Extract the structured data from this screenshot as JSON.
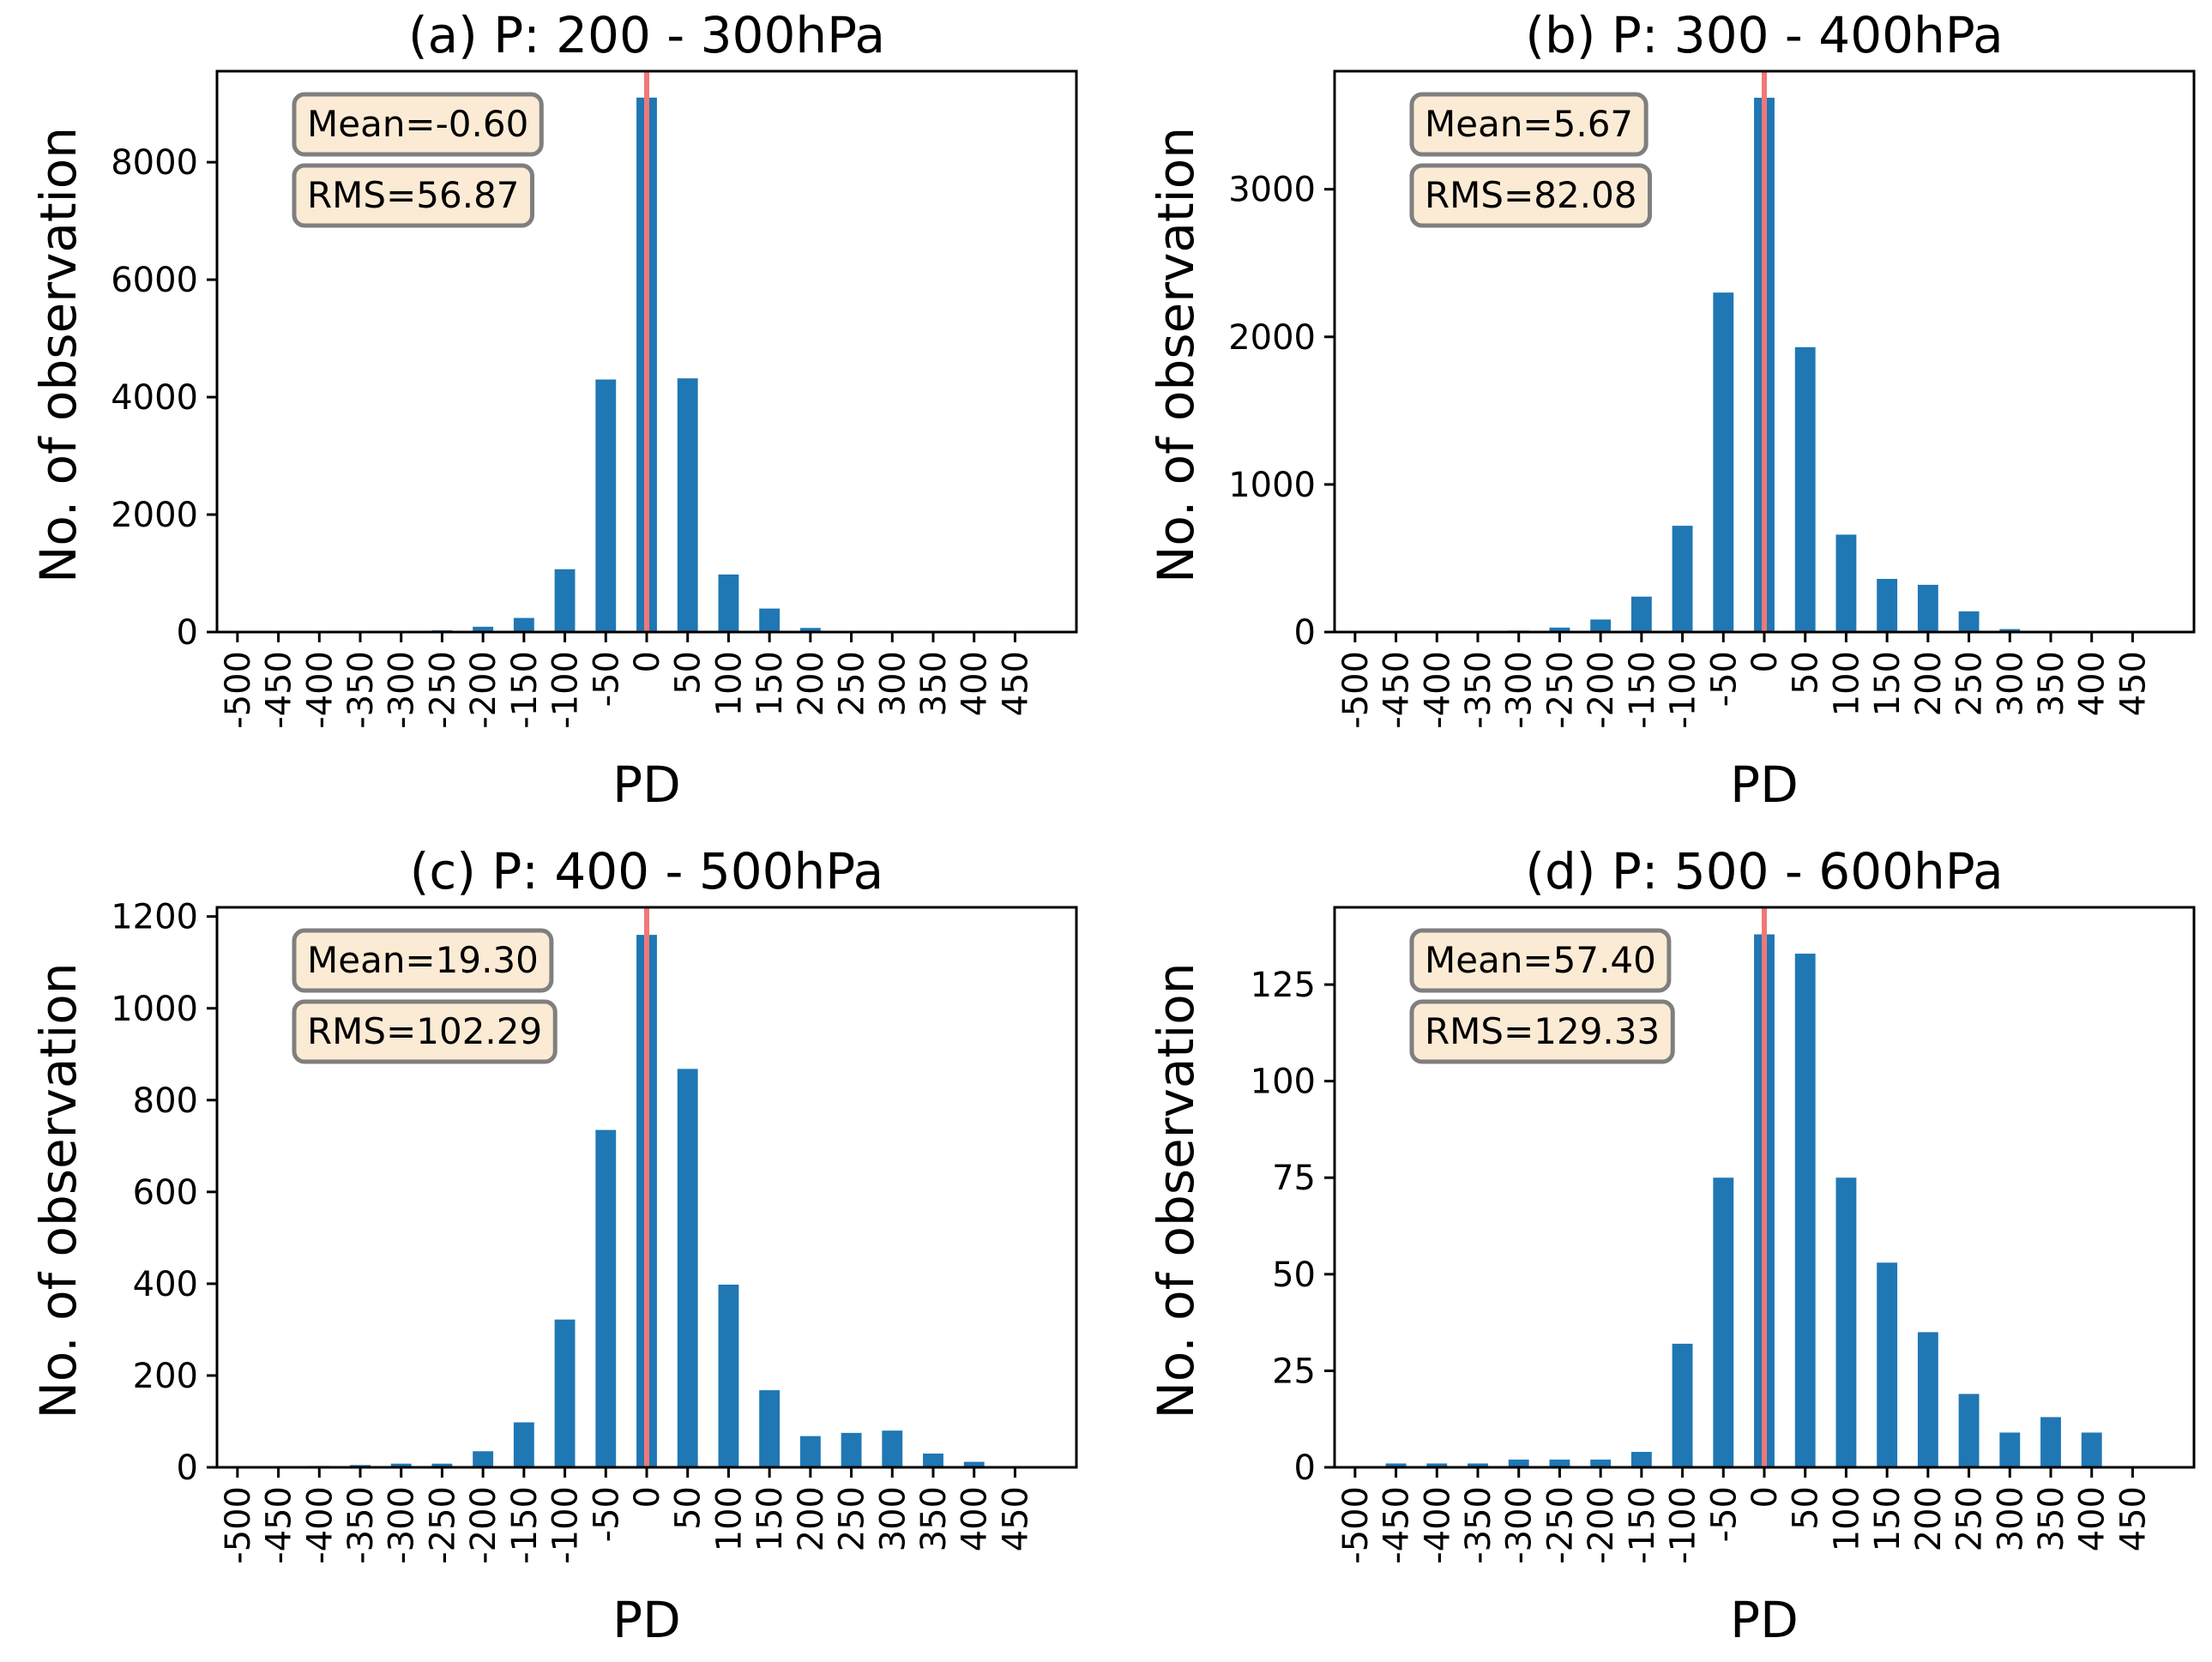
{
  "figure": {
    "accent_color": "#1f77b4",
    "mean_line_color": "#f07878",
    "box_fill": "#fbebd5"
  },
  "chart_data": [
    {
      "type": "bar",
      "title": "(a) P: 200 - 300hPa",
      "xlabel": "PD",
      "ylabel": "No. of observation",
      "categories": [
        "-500",
        "-450",
        "-400",
        "-350",
        "-300",
        "-250",
        "-200",
        "-150",
        "-100",
        "-50",
        "0",
        "50",
        "100",
        "150",
        "200",
        "250",
        "300",
        "350",
        "400",
        "450"
      ],
      "values": [
        0,
        0,
        0,
        0,
        5,
        30,
        90,
        240,
        1070,
        4300,
        9100,
        4320,
        980,
        400,
        70,
        10,
        0,
        0,
        0,
        0
      ],
      "ylim": [
        0,
        9550
      ],
      "yticks": [
        0,
        2000,
        4000,
        6000,
        8000
      ],
      "ytick_labels": [
        "0",
        "2000",
        "4000",
        "6000",
        "8000"
      ],
      "stats": {
        "mean": "Mean=-0.60",
        "rms": "RMS=56.87"
      }
    },
    {
      "type": "bar",
      "title": "(b) P: 300 - 400hPa",
      "xlabel": "PD",
      "ylabel": "No. of observation",
      "categories": [
        "-500",
        "-450",
        "-400",
        "-350",
        "-300",
        "-250",
        "-200",
        "-150",
        "-100",
        "-50",
        "0",
        "50",
        "100",
        "150",
        "200",
        "250",
        "300",
        "350",
        "400",
        "450"
      ],
      "values": [
        0,
        0,
        0,
        0,
        10,
        30,
        85,
        240,
        720,
        2300,
        3620,
        1930,
        660,
        360,
        320,
        140,
        20,
        0,
        0,
        0
      ],
      "ylim": [
        0,
        3800
      ],
      "yticks": [
        0,
        1000,
        2000,
        3000
      ],
      "ytick_labels": [
        "0",
        "1000",
        "2000",
        "3000"
      ],
      "stats": {
        "mean": "Mean=5.67",
        "rms": "RMS=82.08"
      }
    },
    {
      "type": "bar",
      "title": "(c) P: 400 - 500hPa",
      "xlabel": "PD",
      "ylabel": "No. of observation",
      "categories": [
        "-500",
        "-450",
        "-400",
        "-350",
        "-300",
        "-250",
        "-200",
        "-150",
        "-100",
        "-50",
        "0",
        "50",
        "100",
        "150",
        "200",
        "250",
        "300",
        "350",
        "400",
        "450"
      ],
      "values": [
        0,
        0,
        3,
        5,
        8,
        8,
        35,
        98,
        322,
        735,
        1160,
        868,
        398,
        168,
        68,
        75,
        80,
        30,
        12,
        0
      ],
      "ylim": [
        0,
        1220
      ],
      "yticks": [
        0,
        200,
        400,
        600,
        800,
        1000,
        1200
      ],
      "ytick_labels": [
        "0",
        "200",
        "400",
        "600",
        "800",
        "1000",
        "1200"
      ],
      "stats": {
        "mean": "Mean=19.30",
        "rms": "RMS=102.29"
      }
    },
    {
      "type": "bar",
      "title": "(d) P: 500 - 600hPa",
      "xlabel": "PD",
      "ylabel": "No. of observation",
      "categories": [
        "-500",
        "-450",
        "-400",
        "-350",
        "-300",
        "-250",
        "-200",
        "-150",
        "-100",
        "-50",
        "0",
        "50",
        "100",
        "150",
        "200",
        "250",
        "300",
        "350",
        "400",
        "450"
      ],
      "values": [
        0,
        1,
        1,
        1,
        2,
        2,
        2,
        4,
        32,
        75,
        138,
        133,
        75,
        53,
        35,
        19,
        9,
        13,
        9,
        0
      ],
      "ylim": [
        0,
        145
      ],
      "yticks": [
        0,
        25,
        50,
        75,
        100,
        125
      ],
      "ytick_labels": [
        "0",
        "25",
        "50",
        "75",
        "100",
        "125"
      ],
      "stats": {
        "mean": "Mean=57.40",
        "rms": "RMS=129.33"
      }
    }
  ]
}
